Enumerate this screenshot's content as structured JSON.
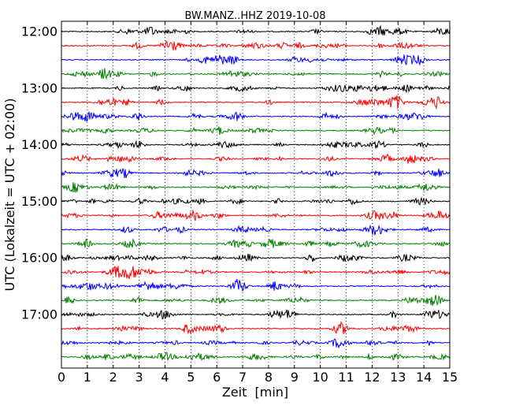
{
  "chart_data": {
    "type": "line",
    "variant": "helicorder",
    "title": "BW.MANZ..HHZ 2019-10-08",
    "xlabel": "Zeit  [min]",
    "ylabel": "UTC (Lokalzeit = UTC + 02:00)",
    "xlim": [
      0,
      15
    ],
    "x_ticks": [
      0,
      1,
      2,
      3,
      4,
      5,
      6,
      7,
      8,
      9,
      10,
      11,
      12,
      13,
      14,
      15
    ],
    "trace_interval_min": 15,
    "trace_count": 24,
    "trace_colors": [
      "#000000",
      "#ff0000",
      "#0000ff",
      "#008000"
    ],
    "y_tick_labels": [
      "12:00",
      "13:00",
      "14:00",
      "15:00",
      "16:00",
      "17:00"
    ],
    "grid": {
      "vertical_dotted": true,
      "horizontal": false
    },
    "series": [
      {
        "start": "12:00",
        "color": "#000000"
      },
      {
        "start": "12:15",
        "color": "#ff0000"
      },
      {
        "start": "12:30",
        "color": "#0000ff"
      },
      {
        "start": "12:45",
        "color": "#008000"
      },
      {
        "start": "13:00",
        "color": "#000000"
      },
      {
        "start": "13:15",
        "color": "#ff0000"
      },
      {
        "start": "13:30",
        "color": "#0000ff"
      },
      {
        "start": "13:45",
        "color": "#008000"
      },
      {
        "start": "14:00",
        "color": "#000000"
      },
      {
        "start": "14:15",
        "color": "#ff0000"
      },
      {
        "start": "14:30",
        "color": "#0000ff"
      },
      {
        "start": "14:45",
        "color": "#008000"
      },
      {
        "start": "15:00",
        "color": "#000000"
      },
      {
        "start": "15:15",
        "color": "#ff0000"
      },
      {
        "start": "15:30",
        "color": "#0000ff"
      },
      {
        "start": "15:45",
        "color": "#008000"
      },
      {
        "start": "16:00",
        "color": "#000000"
      },
      {
        "start": "16:15",
        "color": "#ff0000"
      },
      {
        "start": "16:30",
        "color": "#0000ff"
      },
      {
        "start": "16:45",
        "color": "#008000"
      },
      {
        "start": "17:00",
        "color": "#000000"
      },
      {
        "start": "17:15",
        "color": "#ff0000"
      },
      {
        "start": "17:30",
        "color": "#0000ff"
      },
      {
        "start": "17:45",
        "color": "#008000"
      }
    ]
  }
}
